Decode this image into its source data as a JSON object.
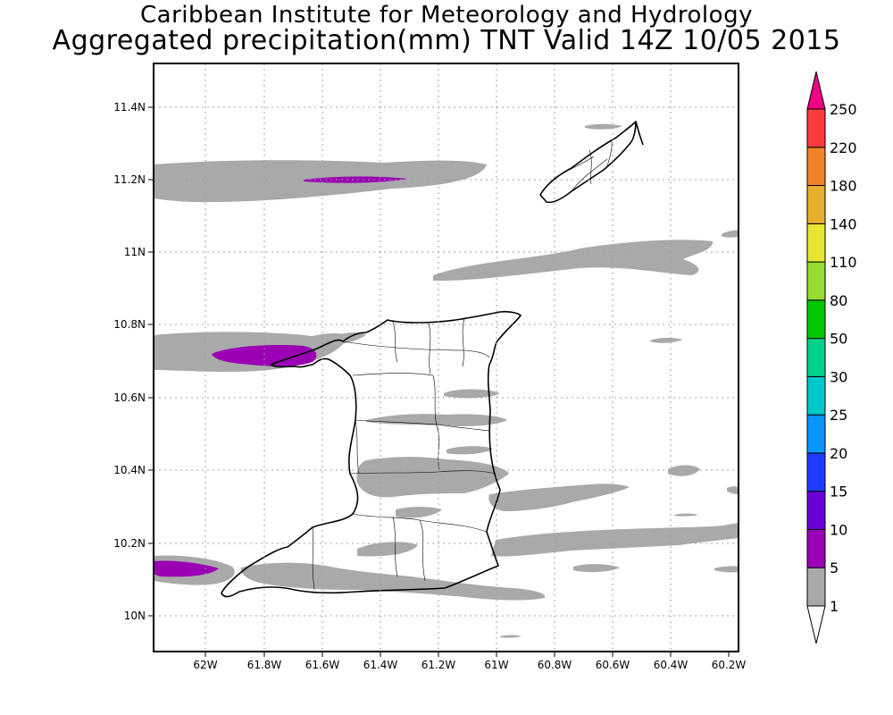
{
  "title_line1": "Caribbean Institute for Meteorology and Hydrology",
  "title_line2": "Aggregated precipitation(mm) TNT Valid 14Z 10/05 2015",
  "map": {
    "lon_ticks": [
      "62W",
      "61.8W",
      "61.6W",
      "61.4W",
      "61.2W",
      "61W",
      "60.8W",
      "60.6W",
      "60.4W",
      "60.2W"
    ],
    "lat_ticks": [
      "11.4N",
      "11.2N",
      "11N",
      "10.8N",
      "10.6N",
      "10.4N",
      "10.2N",
      "10N"
    ],
    "gridlines": "dotted",
    "regions": [
      "Trinidad",
      "Tobago"
    ]
  },
  "legend": {
    "levels": [
      "1",
      "5",
      "10",
      "15",
      "20",
      "25",
      "30",
      "50",
      "80",
      "110",
      "140",
      "180",
      "220",
      "250"
    ],
    "colors": [
      "#ffffff",
      "#a9a9a9",
      "#9b00b4",
      "#6a00d8",
      "#1e3cff",
      "#0a96ff",
      "#00c8c8",
      "#00d28c",
      "#00c800",
      "#96dc32",
      "#e6e632",
      "#e6af2d",
      "#f08228",
      "#fa3c3c",
      "#f00082"
    ]
  }
}
